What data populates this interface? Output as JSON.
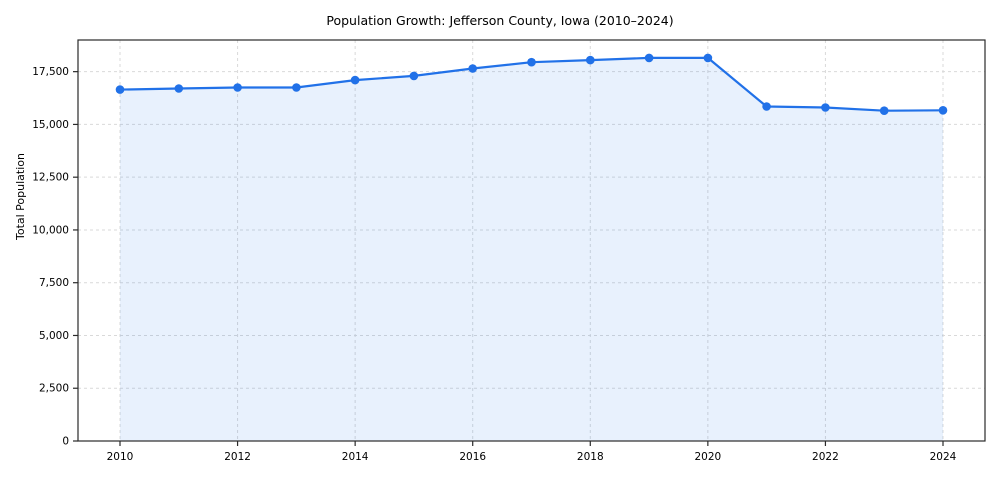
{
  "chart": {
    "title": "Population Growth: Jefferson County, Iowa (2010–2024)",
    "ylabel": "Total Population"
  },
  "chart_data": {
    "type": "line",
    "title": "Population Growth: Jefferson County, Iowa (2010–2024)",
    "xlabel": "",
    "ylabel": "Total Population",
    "x": [
      2010,
      2011,
      2012,
      2013,
      2014,
      2015,
      2016,
      2017,
      2018,
      2019,
      2020,
      2021,
      2022,
      2023,
      2024
    ],
    "series": [
      {
        "name": "Total Population",
        "values": [
          16650,
          16700,
          16750,
          16750,
          17100,
          17300,
          17650,
          17950,
          18050,
          18150,
          18150,
          15850,
          15800,
          15650,
          15670
        ]
      }
    ],
    "ylim": [
      0,
      19000
    ],
    "yticks": [
      0,
      2500,
      5000,
      7500,
      10000,
      12500,
      15000,
      17500
    ],
    "xticks": [
      2010,
      2012,
      2014,
      2016,
      2018,
      2020,
      2022,
      2024
    ],
    "grid": true,
    "grid_style": "dashed",
    "legend": false,
    "line_color": "#2171e8",
    "marker_color": "#2171e8",
    "fill_color": "#2171e8",
    "fill_opacity": 0.1,
    "grid_color": "#d9d9d9",
    "frame_color": "#2a2a2a"
  }
}
